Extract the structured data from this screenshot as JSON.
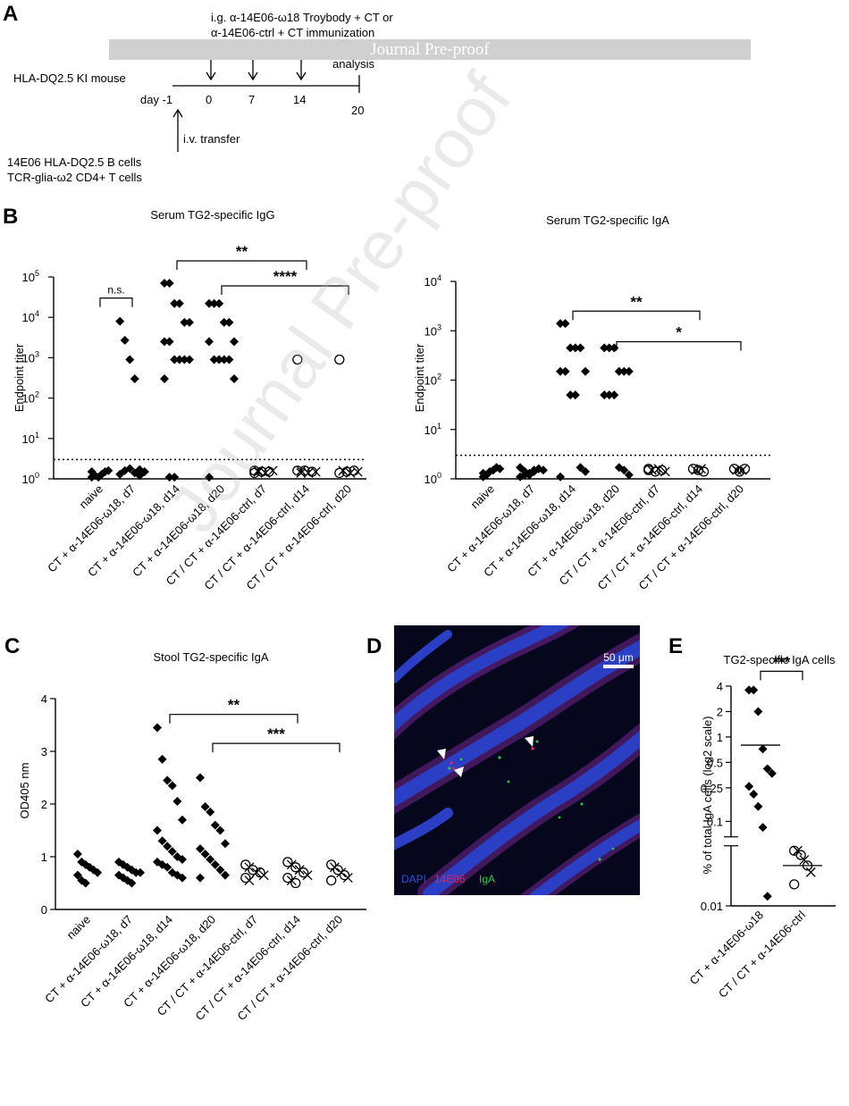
{
  "watermark_banner": "Journal Pre-proof",
  "watermark_diagonal": "Journal Pre-proof",
  "panel_a": {
    "letter": "A",
    "immunization_line1": "i.g. α-14E06-ω18 Troybody + CT or",
    "immunization_line2": "α-14E06-ctrl + CT immunization",
    "analysis_label": "analysis",
    "mouse_label": "HLA-DQ2.5 KI mouse",
    "day_label": "day -1",
    "days": [
      "0",
      "7",
      "14",
      "20"
    ],
    "transfer_label": "i.v. transfer",
    "cells_line1": "14E06 HLA-DQ2.5 B cells",
    "cells_line2": "TCR-glia-ω2 CD4+ T cells"
  },
  "panel_letters": {
    "b": "B",
    "c": "C",
    "d": "D",
    "e": "E"
  },
  "groups": [
    "naive",
    "CT + α-14E06-ω18, d7",
    "CT + α-14E06-ω18, d14",
    "CT + α-14E06-ω18, d20",
    "CT / CT + α-14E06-ctrl, d7",
    "CT / CT + α-14E06-ctrl, d14",
    "CT / CT + α-14E06-ctrl, d20"
  ],
  "chart_data": [
    {
      "type": "scatter",
      "title": "Serum TG2-specific IgG",
      "ylabel": "Endpoint titer",
      "y_scale": "log10",
      "ylim": [
        1,
        100000
      ],
      "yticks": [
        {
          "v": 1,
          "b": "10",
          "e": "0"
        },
        {
          "v": 10,
          "b": "10",
          "e": "1"
        },
        {
          "v": 100,
          "b": "10",
          "e": "2"
        },
        {
          "v": 1000,
          "b": "10",
          "e": "3"
        },
        {
          "v": 10000,
          "b": "10",
          "e": "4"
        },
        {
          "v": 100000,
          "b": "10",
          "e": "5"
        }
      ],
      "detection_limit": 3,
      "series": [
        {
          "group": 0,
          "marker": "diamond",
          "values": [
            1.1,
            1.2,
            1.1,
            1.3,
            1.5,
            1.6,
            1.5
          ]
        },
        {
          "group": 1,
          "marker": "diamond",
          "values": [
            8000,
            2700,
            900,
            300,
            1.7,
            1.5,
            1.3,
            1.6,
            1.8,
            1.4,
            1.2,
            1.5
          ]
        },
        {
          "group": 2,
          "marker": "diamond",
          "values": [
            70000,
            70000,
            22000,
            22000,
            7500,
            7500,
            2500,
            2500,
            900,
            900,
            900,
            900,
            300,
            1.1,
            1.1
          ]
        },
        {
          "group": 3,
          "marker": "diamond",
          "values": [
            22000,
            22000,
            22000,
            7500,
            7500,
            2500,
            2500,
            900,
            900,
            900,
            900,
            300,
            1.1
          ]
        },
        {
          "group": 4,
          "marker": "open",
          "values": [
            1.6,
            1.6,
            1.5,
            1.4,
            1.5,
            1.6,
            1.4,
            1.5
          ]
        },
        {
          "group": 5,
          "marker": "open",
          "values": [
            900,
            1.6,
            1.6,
            1.4,
            1.5,
            1.5,
            1.6,
            1.4
          ]
        },
        {
          "group": 6,
          "marker": "open",
          "values": [
            900,
            1.6,
            1.5,
            1.4,
            1.6,
            1.5,
            1.4,
            1.6
          ]
        }
      ],
      "annotations": [
        {
          "from": 0,
          "to": 1,
          "y": 30000,
          "label": "n.s."
        },
        {
          "from": 2,
          "to": 5,
          "y": 250000,
          "label": "**"
        },
        {
          "from": 3,
          "to": 6,
          "y": 60000,
          "label": "****"
        }
      ]
    },
    {
      "type": "scatter",
      "title": "Serum TG2-specific IgA",
      "ylabel": "Endpoint titer",
      "y_scale": "log10",
      "ylim": [
        1,
        10000
      ],
      "yticks": [
        {
          "v": 1,
          "b": "10",
          "e": "0"
        },
        {
          "v": 10,
          "b": "10",
          "e": "1"
        },
        {
          "v": 100,
          "b": "10",
          "e": "2"
        },
        {
          "v": 1000,
          "b": "10",
          "e": "3"
        },
        {
          "v": 10000,
          "b": "10",
          "e": "4"
        }
      ],
      "detection_limit": 3,
      "series": [
        {
          "group": 0,
          "marker": "diamond",
          "values": [
            1.1,
            1.2,
            1.4,
            1.5,
            1.7,
            1.6,
            1.3
          ]
        },
        {
          "group": 1,
          "marker": "diamond",
          "values": [
            1.1,
            1.2,
            1.3,
            1.4,
            1.6,
            1.5,
            1.7,
            1.4,
            1.2,
            1.5,
            1.6
          ]
        },
        {
          "group": 2,
          "marker": "diamond",
          "values": [
            1400,
            1400,
            450,
            450,
            450,
            150,
            150,
            150,
            50,
            50,
            1.7,
            1.4,
            1.1
          ]
        },
        {
          "group": 3,
          "marker": "diamond",
          "values": [
            450,
            450,
            450,
            150,
            150,
            150,
            50,
            50,
            50,
            1.7,
            1.5,
            1.2
          ]
        },
        {
          "group": 4,
          "marker": "open",
          "values": [
            1.6,
            1.5,
            1.4,
            1.6,
            1.5,
            1.4,
            1.5
          ]
        },
        {
          "group": 5,
          "marker": "open",
          "values": [
            1.6,
            1.5,
            1.5,
            1.6,
            1.4
          ]
        },
        {
          "group": 6,
          "marker": "open",
          "values": [
            1.6,
            1.5,
            1.4,
            1.5,
            1.6
          ]
        }
      ],
      "annotations": [
        {
          "from": 2,
          "to": 5,
          "y": 2500,
          "label": "**"
        },
        {
          "from": 3,
          "to": 6,
          "y": 600,
          "label": "*"
        }
      ]
    },
    {
      "type": "scatter",
      "title": "Stool TG2-specific IgA",
      "ylabel": "OD405 nm",
      "y_scale": "linear",
      "ylim": [
        0,
        4
      ],
      "yticks": [
        {
          "v": 0,
          "b": "0",
          "e": ""
        },
        {
          "v": 1,
          "b": "1",
          "e": ""
        },
        {
          "v": 2,
          "b": "2",
          "e": ""
        },
        {
          "v": 3,
          "b": "3",
          "e": ""
        },
        {
          "v": 4,
          "b": "4",
          "e": ""
        }
      ],
      "series": [
        {
          "group": 0,
          "marker": "diamond",
          "values": [
            1.05,
            0.9,
            0.85,
            0.8,
            0.75,
            0.7,
            0.65,
            0.55,
            0.5
          ]
        },
        {
          "group": 1,
          "marker": "diamond",
          "values": [
            0.9,
            0.85,
            0.8,
            0.75,
            0.7,
            0.7,
            0.65,
            0.6,
            0.55,
            0.5
          ]
        },
        {
          "group": 2,
          "marker": "diamond",
          "values": [
            3.45,
            2.85,
            2.45,
            2.35,
            2.05,
            1.7,
            1.5,
            1.3,
            1.2,
            1.1,
            1.0,
            0.95,
            0.9,
            0.85,
            0.8,
            0.7,
            0.65,
            0.6
          ]
        },
        {
          "group": 3,
          "marker": "diamond",
          "values": [
            2.5,
            1.95,
            1.85,
            1.6,
            1.5,
            1.25,
            1.15,
            1.05,
            0.95,
            0.85,
            0.75,
            0.65,
            0.6
          ]
        },
        {
          "group": 4,
          "marker": "open",
          "values": [
            0.85,
            0.8,
            0.75,
            0.7,
            0.7,
            0.65,
            0.6,
            0.55
          ]
        },
        {
          "group": 5,
          "marker": "open",
          "values": [
            0.9,
            0.85,
            0.8,
            0.75,
            0.7,
            0.65,
            0.6,
            0.55,
            0.5
          ]
        },
        {
          "group": 6,
          "marker": "open",
          "values": [
            0.85,
            0.8,
            0.75,
            0.7,
            0.65,
            0.6,
            0.55
          ]
        }
      ],
      "annotations": [
        {
          "from": 2,
          "to": 5,
          "y": 3.7,
          "label": "**"
        },
        {
          "from": 3,
          "to": 6,
          "y": 3.15,
          "label": "***"
        }
      ]
    },
    {
      "type": "scatter",
      "title": "TG2-specific IgA cells",
      "ylabel": "% of total IgA cells (log2  scale)",
      "y_scale": "log2",
      "ylim": [
        0.01,
        4
      ],
      "yticks": [
        {
          "v": 0.01,
          "b": "0.01",
          "e": ""
        },
        {
          "v": 0.1,
          "b": "0.1",
          "e": ""
        },
        {
          "v": 0.25,
          "b": "0.25",
          "e": ""
        },
        {
          "v": 0.5,
          "b": "0.5",
          "e": ""
        },
        {
          "v": 1,
          "b": "1",
          "e": ""
        },
        {
          "v": 2,
          "b": "2",
          "e": ""
        },
        {
          "v": 4,
          "b": "4",
          "e": ""
        }
      ],
      "categories": [
        "CT + α-14E06-ω18",
        "CT / CT + α-14E06-ctrl"
      ],
      "series": [
        {
          "group": 0,
          "marker": "diamond",
          "values": [
            3.6,
            3.6,
            2.0,
            0.72,
            0.42,
            0.37,
            0.26,
            0.21,
            0.15,
            0.085,
            0.013
          ],
          "mean": 0.8
        },
        {
          "group": 1,
          "marker": "open",
          "values": [
            0.045,
            0.045,
            0.04,
            0.035,
            0.03,
            0.025,
            0.018
          ],
          "mean": 0.03
        }
      ],
      "annotations": [
        {
          "from": 0,
          "to": 1,
          "y": 6,
          "label": "***"
        }
      ]
    }
  ],
  "panel_d": {
    "scale_bar": "50 μm",
    "stain_dapi": "DAPI",
    "stain_14e06": "14E06",
    "stain_iga": "IgA",
    "colors": {
      "dapi": "#2d4fd6",
      "e06": "#e0245a",
      "iga": "#2ec84a"
    }
  }
}
